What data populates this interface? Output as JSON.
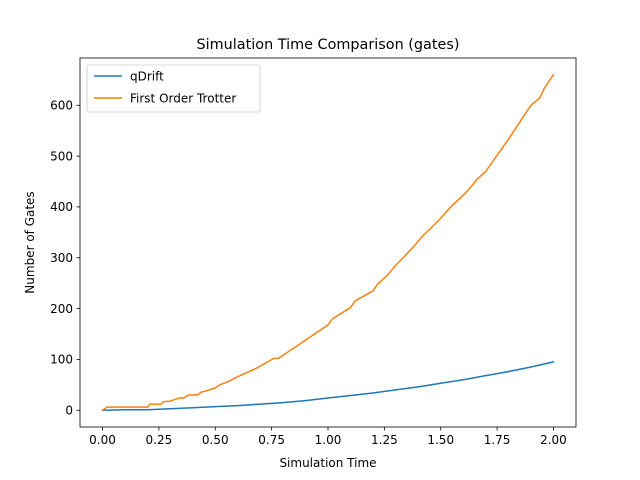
{
  "chart_data": {
    "type": "line",
    "title": "Simulation Time Comparison (gates)",
    "xlabel": "Simulation Time",
    "ylabel": "Number of Gates",
    "xlim": [
      -0.1,
      2.1
    ],
    "ylim": [
      -33,
      693
    ],
    "xticks": [
      0.0,
      0.25,
      0.5,
      0.75,
      1.0,
      1.25,
      1.5,
      1.75,
      2.0
    ],
    "xtick_labels": [
      "0.00",
      "0.25",
      "0.50",
      "0.75",
      "1.00",
      "1.25",
      "1.50",
      "1.75",
      "2.00"
    ],
    "yticks": [
      0,
      100,
      200,
      300,
      400,
      500,
      600
    ],
    "ytick_labels": [
      "0",
      "100",
      "200",
      "300",
      "400",
      "500",
      "600"
    ],
    "grid": false,
    "legend_position": "top-left",
    "series": [
      {
        "name": "qDrift",
        "color": "#1f77b4",
        "x": [
          0.0,
          0.1,
          0.2,
          0.25,
          0.3,
          0.4,
          0.5,
          0.6,
          0.7,
          0.8,
          0.9,
          1.0,
          1.1,
          1.2,
          1.3,
          1.4,
          1.5,
          1.6,
          1.7,
          1.8,
          1.9,
          2.0
        ],
        "y": [
          0,
          1,
          1,
          2,
          3,
          5,
          7,
          9,
          12,
          15,
          19,
          24,
          29,
          34,
          40,
          46,
          53,
          60,
          68,
          76,
          85,
          95
        ]
      },
      {
        "name": "First Order Trotter",
        "color": "#ff7f0e",
        "x": [
          0.0,
          0.02,
          0.2,
          0.21,
          0.26,
          0.27,
          0.3,
          0.34,
          0.36,
          0.38,
          0.42,
          0.44,
          0.46,
          0.5,
          0.52,
          0.56,
          0.6,
          0.64,
          0.68,
          0.72,
          0.76,
          0.78,
          0.8,
          0.9,
          1.0,
          1.02,
          1.1,
          1.12,
          1.2,
          1.22,
          1.26,
          1.3,
          1.34,
          1.38,
          1.42,
          1.46,
          1.5,
          1.54,
          1.58,
          1.62,
          1.66,
          1.7,
          1.8,
          1.9,
          1.94,
          1.96,
          2.0
        ],
        "y": [
          0,
          6,
          6,
          12,
          12,
          17,
          18,
          24,
          24,
          30,
          30,
          36,
          38,
          44,
          50,
          57,
          66,
          74,
          82,
          92,
          102,
          102,
          108,
          138,
          168,
          180,
          202,
          215,
          235,
          248,
          264,
          285,
          303,
          322,
          343,
          360,
          378,
          398,
          415,
          432,
          454,
          470,
          533,
          600,
          615,
          634,
          660
        ]
      }
    ]
  }
}
